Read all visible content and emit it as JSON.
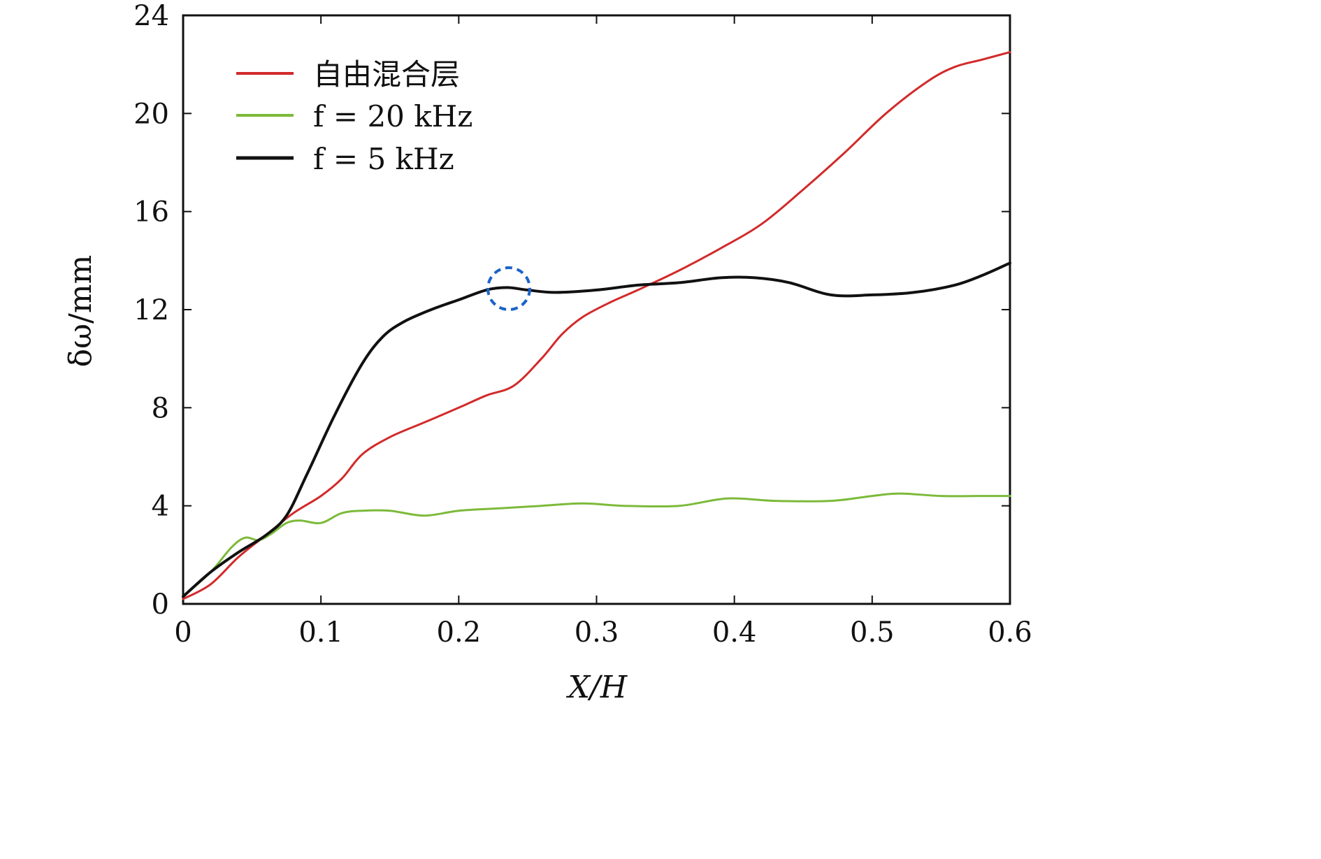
{
  "chart_data": {
    "type": "line",
    "xlabel": "X/H",
    "ylabel": "δω/mm",
    "xlim": [
      0,
      0.6
    ],
    "ylim": [
      0,
      24
    ],
    "xticks": [
      "0",
      "0.1",
      "0.2",
      "0.3",
      "0.4",
      "0.5",
      "0.6"
    ],
    "yticks": [
      "0",
      "4",
      "8",
      "12",
      "16",
      "20",
      "24"
    ],
    "grid": false,
    "legend_position": "top-left",
    "series": [
      {
        "name": "自由混合层",
        "color": "#d22a2a",
        "x": [
          0,
          0.02,
          0.04,
          0.06,
          0.08,
          0.1,
          0.115,
          0.13,
          0.15,
          0.175,
          0.2,
          0.22,
          0.24,
          0.26,
          0.275,
          0.29,
          0.31,
          0.33,
          0.36,
          0.39,
          0.42,
          0.45,
          0.48,
          0.51,
          0.54,
          0.56,
          0.58,
          0.6
        ],
        "y": [
          0.2,
          0.8,
          1.9,
          2.8,
          3.7,
          4.4,
          5.1,
          6.1,
          6.8,
          7.4,
          8.0,
          8.5,
          8.9,
          10.0,
          11.0,
          11.7,
          12.3,
          12.8,
          13.6,
          14.5,
          15.5,
          16.9,
          18.4,
          20.0,
          21.3,
          21.9,
          22.2,
          22.5
        ]
      },
      {
        "name": "f = 20 kHz",
        "color": "#7cba3a",
        "x": [
          0,
          0.02,
          0.035,
          0.045,
          0.055,
          0.065,
          0.075,
          0.085,
          0.1,
          0.115,
          0.13,
          0.15,
          0.175,
          0.2,
          0.23,
          0.26,
          0.29,
          0.32,
          0.36,
          0.395,
          0.43,
          0.47,
          0.5,
          0.52,
          0.55,
          0.58,
          0.6
        ],
        "y": [
          0.3,
          1.3,
          2.3,
          2.7,
          2.6,
          2.9,
          3.3,
          3.4,
          3.3,
          3.7,
          3.8,
          3.8,
          3.6,
          3.8,
          3.9,
          4.0,
          4.1,
          4.0,
          4.0,
          4.3,
          4.2,
          4.2,
          4.4,
          4.5,
          4.4,
          4.4,
          4.4
        ]
      },
      {
        "name": "f = 5 kHz",
        "color": "#111111",
        "x": [
          0,
          0.02,
          0.04,
          0.06,
          0.075,
          0.09,
          0.11,
          0.13,
          0.145,
          0.16,
          0.18,
          0.2,
          0.22,
          0.235,
          0.25,
          0.27,
          0.3,
          0.33,
          0.36,
          0.39,
          0.415,
          0.44,
          0.47,
          0.5,
          0.53,
          0.56,
          0.58,
          0.6
        ],
        "y": [
          0.3,
          1.3,
          2.1,
          2.8,
          3.6,
          5.3,
          7.7,
          9.8,
          10.9,
          11.5,
          12.0,
          12.4,
          12.8,
          12.9,
          12.8,
          12.7,
          12.8,
          13.0,
          13.1,
          13.3,
          13.3,
          13.1,
          12.6,
          12.6,
          12.7,
          13.0,
          13.4,
          13.9
        ]
      }
    ]
  }
}
